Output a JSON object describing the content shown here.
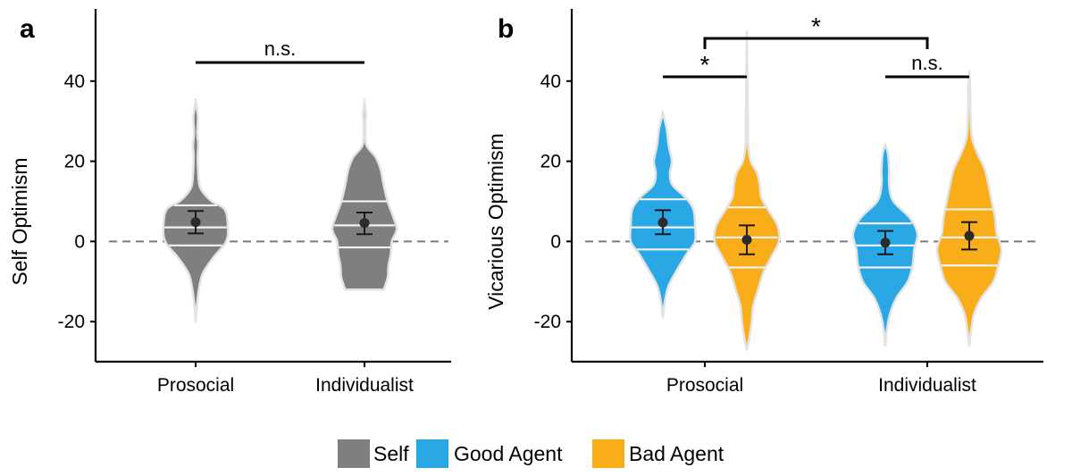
{
  "colors": {
    "Self": "#7f7f7f",
    "Good Agent": "#2aa8e6",
    "Bad Agent": "#f9ad18",
    "outline": "#e3e3e3",
    "reference": "#7a7a7a"
  },
  "legend": {
    "items": [
      {
        "label": "Self",
        "color": "#7f7f7f"
      },
      {
        "label": "Good Agent",
        "color": "#2aa8e6"
      },
      {
        "label": "Bad Agent",
        "color": "#f9ad18"
      }
    ]
  },
  "chart_data": [
    {
      "panel": "a",
      "type": "violin",
      "ylabel": "Self Optimism",
      "categories": [
        "Prosocial",
        "Individualist"
      ],
      "ylim": [
        -30,
        58
      ],
      "yticks": [
        -20,
        0,
        20,
        40
      ],
      "reference_line": 0,
      "series": [
        {
          "name": "Self",
          "color": "#7f7f7f",
          "category": "Prosocial",
          "mean": 4.8,
          "ci": [
            2.0,
            7.6
          ],
          "quantiles": [
            -1,
            3.5,
            9
          ],
          "range": [
            -20,
            35
          ],
          "density": [
            [
              -20,
              0.0
            ],
            [
              -16,
              0.04
            ],
            [
              -12,
              0.1
            ],
            [
              -8,
              0.22
            ],
            [
              -4,
              0.55
            ],
            [
              0,
              0.95
            ],
            [
              4,
              1.0
            ],
            [
              8,
              0.9
            ],
            [
              10,
              0.5
            ],
            [
              12,
              0.25
            ],
            [
              14,
              0.12
            ],
            [
              17,
              0.08
            ],
            [
              21,
              0.06
            ],
            [
              24,
              0.08
            ],
            [
              27,
              0.05
            ],
            [
              31,
              0.07
            ],
            [
              35,
              0.0
            ]
          ]
        },
        {
          "name": "Self",
          "color": "#7f7f7f",
          "category": "Individualist",
          "mean": 4.6,
          "ci": [
            1.8,
            7.2
          ],
          "quantiles": [
            -1.5,
            4,
            10
          ],
          "range": [
            -12,
            35
          ],
          "density": [
            [
              -12,
              0.6
            ],
            [
              -9,
              0.72
            ],
            [
              -6,
              0.75
            ],
            [
              -3,
              0.82
            ],
            [
              0,
              0.85
            ],
            [
              3,
              1.0
            ],
            [
              6,
              0.9
            ],
            [
              10,
              0.72
            ],
            [
              14,
              0.6
            ],
            [
              18,
              0.5
            ],
            [
              21,
              0.35
            ],
            [
              24,
              0.06
            ],
            [
              28,
              0.03
            ],
            [
              32,
              0.04
            ],
            [
              35,
              0.0
            ]
          ]
        }
      ],
      "significance": [
        {
          "label": "n.s.",
          "from": "Prosocial/Self",
          "to": "Individualist/Self"
        }
      ]
    },
    {
      "panel": "b",
      "type": "violin",
      "ylabel": "Vicarious Optimism",
      "categories": [
        "Prosocial",
        "Individualist"
      ],
      "ylim": [
        -30,
        58
      ],
      "yticks": [
        -20,
        0,
        20,
        40
      ],
      "reference_line": 0,
      "series": [
        {
          "name": "Good Agent",
          "color": "#2aa8e6",
          "category": "Prosocial",
          "mean": 4.7,
          "ci": [
            1.8,
            7.8
          ],
          "quantiles": [
            -2,
            3.5,
            10.5
          ],
          "range": [
            -19,
            32
          ],
          "density": [
            [
              -19,
              0.0
            ],
            [
              -15,
              0.06
            ],
            [
              -11,
              0.18
            ],
            [
              -7,
              0.45
            ],
            [
              -3,
              0.75
            ],
            [
              0,
              1.0
            ],
            [
              4,
              1.0
            ],
            [
              8,
              0.95
            ],
            [
              11,
              0.7
            ],
            [
              14,
              0.3
            ],
            [
              17,
              0.22
            ],
            [
              20,
              0.28
            ],
            [
              24,
              0.18
            ],
            [
              28,
              0.12
            ],
            [
              32,
              0.0
            ]
          ]
        },
        {
          "name": "Bad Agent",
          "color": "#f9ad18",
          "category": "Prosocial",
          "mean": 0.4,
          "ci": [
            -3.2,
            4.0
          ],
          "quantiles": [
            -6.5,
            1,
            8.5
          ],
          "range": [
            -27,
            51
          ],
          "density": [
            [
              -27,
              0.0
            ],
            [
              -24,
              0.08
            ],
            [
              -20,
              0.15
            ],
            [
              -16,
              0.2
            ],
            [
              -12,
              0.35
            ],
            [
              -8,
              0.5
            ],
            [
              -4,
              0.75
            ],
            [
              0,
              1.0
            ],
            [
              4,
              0.95
            ],
            [
              8,
              0.65
            ],
            [
              11,
              0.45
            ],
            [
              14,
              0.4
            ],
            [
              17,
              0.32
            ],
            [
              20,
              0.12
            ],
            [
              24,
              0.04
            ],
            [
              30,
              0.03
            ],
            [
              40,
              0.02
            ],
            [
              51,
              0.0
            ]
          ]
        },
        {
          "name": "Good Agent",
          "color": "#2aa8e6",
          "category": "Individualist",
          "mean": -0.3,
          "ci": [
            -3.2,
            2.6
          ],
          "quantiles": [
            -6.5,
            -1,
            4.5
          ],
          "range": [
            -26,
            24
          ],
          "density": [
            [
              -26,
              0.0
            ],
            [
              -22,
              0.05
            ],
            [
              -18,
              0.15
            ],
            [
              -14,
              0.35
            ],
            [
              -10,
              0.7
            ],
            [
              -6,
              0.85
            ],
            [
              -2,
              0.9
            ],
            [
              2,
              1.0
            ],
            [
              6,
              0.75
            ],
            [
              10,
              0.25
            ],
            [
              14,
              0.12
            ],
            [
              18,
              0.12
            ],
            [
              22,
              0.08
            ],
            [
              24,
              0.0
            ]
          ]
        },
        {
          "name": "Bad Agent",
          "color": "#f9ad18",
          "category": "Individualist",
          "mean": 1.4,
          "ci": [
            -2.0,
            4.8
          ],
          "quantiles": [
            -6,
            1,
            8
          ],
          "range": [
            -26,
            42
          ],
          "density": [
            [
              -26,
              0.0
            ],
            [
              -22,
              0.06
            ],
            [
              -18,
              0.15
            ],
            [
              -14,
              0.38
            ],
            [
              -10,
              0.75
            ],
            [
              -6,
              0.9
            ],
            [
              -2,
              1.0
            ],
            [
              2,
              0.85
            ],
            [
              6,
              0.8
            ],
            [
              10,
              0.7
            ],
            [
              14,
              0.6
            ],
            [
              18,
              0.48
            ],
            [
              22,
              0.25
            ],
            [
              26,
              0.08
            ],
            [
              32,
              0.04
            ],
            [
              38,
              0.03
            ],
            [
              42,
              0.0
            ]
          ]
        }
      ],
      "significance": [
        {
          "label": "*",
          "from": "Prosocial/Good Agent",
          "to": "Prosocial/Bad Agent"
        },
        {
          "label": "n.s.",
          "from": "Individualist/Good Agent",
          "to": "Individualist/Bad Agent"
        },
        {
          "label": "*",
          "from": "Prosocial",
          "to": "Individualist"
        }
      ]
    }
  ]
}
